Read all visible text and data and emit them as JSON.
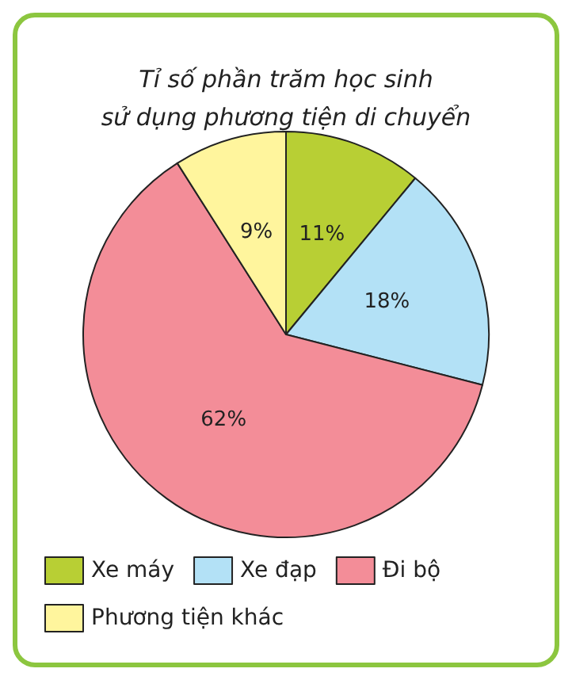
{
  "chart_data": {
    "type": "pie",
    "title": "Tỉ số phần trăm học sinh\nsử dụng phương tiện di chuyển",
    "categories": [
      "Xe máy",
      "Xe đạp",
      "Đi bộ",
      "Phương tiện khác"
    ],
    "values": [
      11,
      18,
      62,
      9
    ],
    "colors": [
      "#b8cf34",
      "#b3e1f6",
      "#f38d98",
      "#fff59d"
    ],
    "value_labels": [
      "11%",
      "18%",
      "62%",
      "9%"
    ],
    "legend": "bottom"
  }
}
